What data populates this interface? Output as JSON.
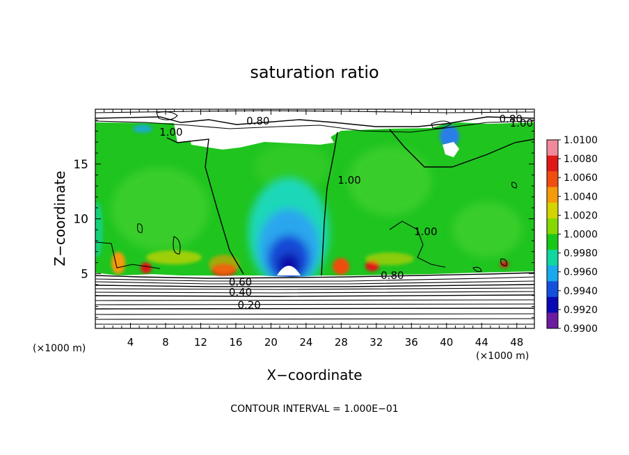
{
  "chart_data": {
    "type": "heatmap",
    "title": "saturation ratio",
    "xlabel": "X−coordinate",
    "ylabel": "Z−coordinate",
    "x_unit_left": "(×1000 m)",
    "x_unit_right": "(×1000 m)",
    "xlim": [
      0,
      50
    ],
    "ylim": [
      0,
      20
    ],
    "x_ticks": [
      4,
      8,
      12,
      16,
      20,
      24,
      28,
      32,
      36,
      40,
      44,
      48
    ],
    "y_ticks": [
      5,
      10,
      15
    ],
    "footer": "CONTOUR INTERVAL = 1.000E−01",
    "colorbar": {
      "min": 0.99,
      "max": 1.01,
      "labels": [
        "1.0100",
        "1.0080",
        "1.0060",
        "1.0040",
        "1.0020",
        "1.0000",
        "0.9980",
        "0.9960",
        "0.9940",
        "0.9920",
        "0.9900"
      ],
      "colors": [
        "#f08a9a",
        "#e01818",
        "#f04e10",
        "#f59a0a",
        "#d4d400",
        "#86d800",
        "#18c818",
        "#10d6a0",
        "#1aa8ee",
        "#1450dc",
        "#0808b4",
        "#6c1aa0"
      ]
    },
    "contour_labels": [
      {
        "text": "0.80",
        "x": 17.2,
        "z": 18.6
      },
      {
        "text": "1.00",
        "x": 7.3,
        "z": 17.6
      },
      {
        "text": "0.80",
        "x": 46.0,
        "z": 18.8
      },
      {
        "text": "1.00",
        "x": 47.2,
        "z": 18.4
      },
      {
        "text": "1.00",
        "x": 27.6,
        "z": 13.2
      },
      {
        "text": "1.00",
        "x": 36.3,
        "z": 8.5
      },
      {
        "text": "0.60",
        "x": 15.2,
        "z": 3.9
      },
      {
        "text": "0.40",
        "x": 15.2,
        "z": 3.0
      },
      {
        "text": "0.20",
        "x": 16.2,
        "z": 1.8
      },
      {
        "text": "0.80",
        "x": 32.5,
        "z": 4.5
      }
    ],
    "contour_levels": [
      0.2,
      0.4,
      0.6,
      0.8,
      1.0
    ]
  }
}
